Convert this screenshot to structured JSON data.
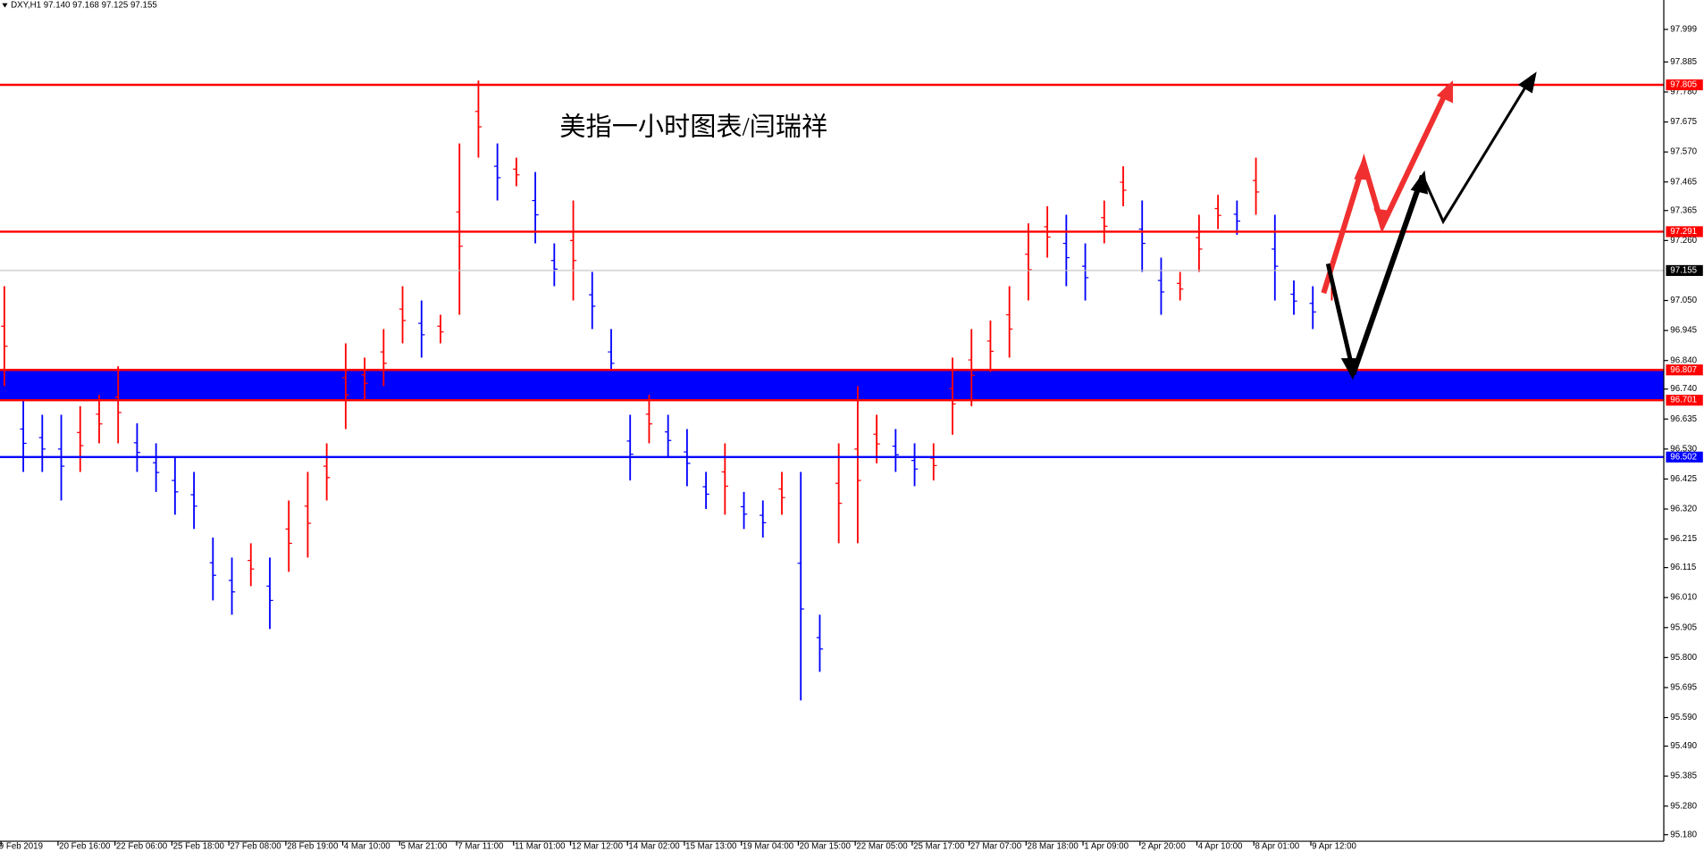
{
  "chart_data": {
    "type": "ohlc",
    "header": "DXY,H1  97.140 97.168 97.125 97.155",
    "annotation": "美指一小时图表/闫瑞祥",
    "categories": [
      "9 Feb 2019",
      "20 Feb 16:00",
      "22 Feb 06:00",
      "25 Feb 18:00",
      "27 Feb 08:00",
      "28 Feb 19:00",
      "4 Mar 10:00",
      "5 Mar 21:00",
      "7 Mar 11:00",
      "11 Mar 01:00",
      "12 Mar 12:00",
      "14 Mar 02:00",
      "15 Mar 13:00",
      "19 Mar 04:00",
      "20 Mar 15:00",
      "22 Mar 05:00",
      "25 Mar 17:00",
      "27 Mar 07:00",
      "28 Mar 18:00",
      "1 Apr 09:00",
      "2 Apr 20:00",
      "4 Apr 10:00",
      "8 Apr 01:00",
      "9 Apr 12:00"
    ],
    "high": [
      97.1,
      96.7,
      96.65,
      96.65,
      96.68,
      96.72,
      96.82,
      96.62,
      96.55,
      96.5,
      96.45,
      96.22,
      96.15,
      96.2,
      96.15,
      96.35,
      96.45,
      96.55,
      96.9,
      96.85,
      96.95,
      97.1,
      97.05,
      97.0,
      97.6,
      97.82,
      97.6,
      97.55,
      97.5,
      97.25,
      97.4,
      97.15,
      96.95,
      96.65,
      96.72,
      96.65,
      96.6,
      96.45,
      96.55,
      96.38,
      96.35,
      96.45,
      96.45,
      95.95,
      96.55,
      96.75,
      96.65,
      96.6,
      96.55,
      96.55,
      96.85,
      96.95,
      96.98,
      97.1,
      97.32,
      97.38,
      97.35,
      97.25,
      97.4,
      97.52,
      97.4,
      97.2,
      97.15,
      97.35,
      97.42,
      97.4,
      97.55,
      97.35,
      97.12,
      97.1,
      97.18
    ],
    "low": [
      96.75,
      96.45,
      96.45,
      96.35,
      96.45,
      96.55,
      96.55,
      96.45,
      96.38,
      96.3,
      96.25,
      96.0,
      95.95,
      96.05,
      95.9,
      96.1,
      96.15,
      96.35,
      96.6,
      96.7,
      96.75,
      96.9,
      96.85,
      96.9,
      97.0,
      97.55,
      97.4,
      97.45,
      97.25,
      97.1,
      97.05,
      96.95,
      96.75,
      96.42,
      96.55,
      96.5,
      96.4,
      96.32,
      96.3,
      96.25,
      96.22,
      96.3,
      95.65,
      95.75,
      96.2,
      96.2,
      96.48,
      96.45,
      96.4,
      96.42,
      96.58,
      96.68,
      96.8,
      96.85,
      97.05,
      97.2,
      97.1,
      97.05,
      97.25,
      97.38,
      97.15,
      97.0,
      97.05,
      97.15,
      97.3,
      97.28,
      97.35,
      97.05,
      97.0,
      96.95,
      97.05
    ],
    "up_color": "#ff0000",
    "down_color": "#0000ff",
    "ylim": [
      95.157,
      98.102
    ],
    "yticks": [
      97.999,
      97.885,
      {
        "value": 97.78,
        "label": "97.780"
      },
      97.675,
      {
        "value": 97.57,
        "label": "97.570"
      },
      97.465,
      97.365,
      {
        "value": 97.26,
        "label": "97.260"
      },
      {
        "value": 97.05,
        "label": "97.050"
      },
      96.945,
      {
        "value": 96.84,
        "label": "96.840"
      },
      {
        "value": 96.74,
        "label": "96.740"
      },
      96.635,
      {
        "value": 96.53,
        "label": "96.530"
      },
      96.425,
      {
        "value": 96.32,
        "label": "96.320"
      },
      96.215,
      96.115,
      {
        "value": 96.01,
        "label": "96.010"
      },
      95.905,
      {
        "value": 95.8,
        "label": "95.800"
      },
      95.695,
      {
        "value": 95.59,
        "label": "95.590"
      },
      {
        "value": 95.49,
        "label": "95.490"
      },
      95.385,
      {
        "value": 95.28,
        "label": "95.280"
      },
      {
        "value": 95.18,
        "label": "95.180"
      }
    ],
    "levels": [
      {
        "value": 97.805,
        "color": "#ff0000"
      },
      {
        "value": 97.291,
        "color": "#ff0000"
      },
      {
        "value": 96.807,
        "color": "#ff0000",
        "fill_to_next": "#0000ff"
      },
      {
        "value": 96.701,
        "color": "#ff0000"
      },
      {
        "value": 96.502,
        "color": "#0000ff"
      }
    ],
    "current_price": 97.155
  }
}
